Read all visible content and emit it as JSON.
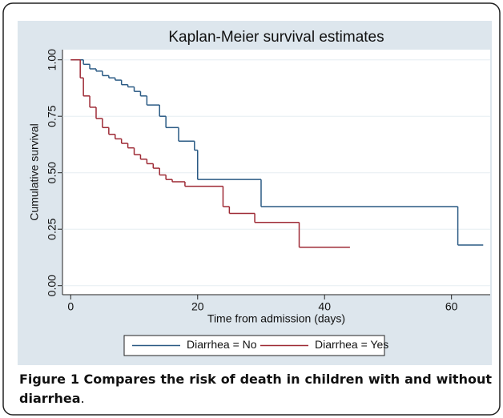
{
  "chart_data": {
    "type": "step",
    "title": "Kaplan-Meier survival estimates",
    "x_label": "Time from admission (days)",
    "y_label": "Cumulative survival",
    "xlim": [
      -1.3,
      66.1
    ],
    "ylim": [
      -0.04,
      1.045
    ],
    "xticks": [
      0,
      20,
      40,
      60
    ],
    "yticks": [
      {
        "value": 0,
        "label": "0.00"
      },
      {
        "value": 0.25,
        "label": "0.25"
      },
      {
        "value": 0.5,
        "label": "0.50"
      },
      {
        "value": 0.75,
        "label": "0.75"
      },
      {
        "value": 1,
        "label": "1.00"
      }
    ],
    "grid": true,
    "series": [
      {
        "name": "Diarrhea = No",
        "color": "#2a5a84",
        "x": [
          0,
          2,
          3,
          4,
          5,
          6,
          7,
          8,
          9,
          10,
          11,
          12,
          14,
          15,
          17,
          19.5,
          20,
          30,
          61,
          65
        ],
        "values": [
          1.0,
          0.98,
          0.96,
          0.95,
          0.93,
          0.92,
          0.91,
          0.89,
          0.88,
          0.86,
          0.84,
          0.8,
          0.75,
          0.7,
          0.64,
          0.6,
          0.47,
          0.35,
          0.18,
          0.18
        ]
      },
      {
        "name": "Diarrhea = Yes",
        "color": "#9e2a35",
        "x": [
          0,
          1.5,
          2,
          3,
          4,
          5,
          6,
          7,
          8,
          9,
          10,
          11,
          12,
          13,
          14,
          15,
          16,
          18,
          24,
          25,
          29,
          36,
          44
        ],
        "values": [
          1.0,
          0.92,
          0.84,
          0.79,
          0.74,
          0.7,
          0.67,
          0.65,
          0.63,
          0.61,
          0.58,
          0.56,
          0.54,
          0.52,
          0.49,
          0.47,
          0.46,
          0.44,
          0.35,
          0.32,
          0.28,
          0.17,
          0.17
        ]
      }
    ]
  },
  "caption": {
    "label": "Figure 1",
    "text": "Compares the risk of death in children with and without diarrhea",
    "end": "."
  }
}
